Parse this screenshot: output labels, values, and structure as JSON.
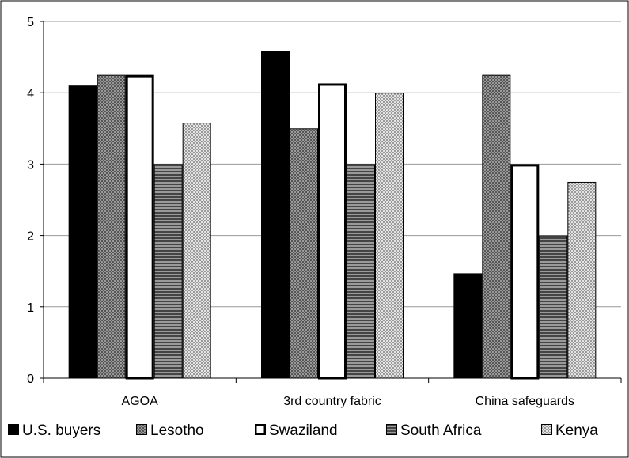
{
  "chart_data": {
    "type": "bar",
    "categories": [
      "AGOA",
      "3rd country fabric",
      "China safeguards"
    ],
    "series": [
      {
        "name": "U.S. buyers",
        "values": [
          4.1,
          4.58,
          1.47
        ]
      },
      {
        "name": "Lesotho",
        "values": [
          4.25,
          3.5,
          4.25
        ]
      },
      {
        "name": "Swaziland",
        "values": [
          4.25,
          4.13,
          3.0
        ]
      },
      {
        "name": "South Africa",
        "values": [
          3.0,
          3.0,
          2.0
        ]
      },
      {
        "name": "Kenya",
        "values": [
          3.58,
          4.0,
          2.75
        ]
      }
    ],
    "ylim": [
      0,
      5
    ],
    "yticks": [
      0,
      1,
      2,
      3,
      4,
      5
    ],
    "grid": true,
    "legend": "bottom",
    "title": "",
    "xlabel": "",
    "ylabel": ""
  },
  "series_styles": [
    {
      "fill": "#000000",
      "pattern": "none"
    },
    {
      "fill": "#888888",
      "pattern": "crosshatch-dark"
    },
    {
      "fill": "#ffffff",
      "pattern": "none"
    },
    {
      "fill": "#777777",
      "pattern": "horizontal-dark"
    },
    {
      "fill": "#bbbbbb",
      "pattern": "crosshatch-light"
    }
  ]
}
